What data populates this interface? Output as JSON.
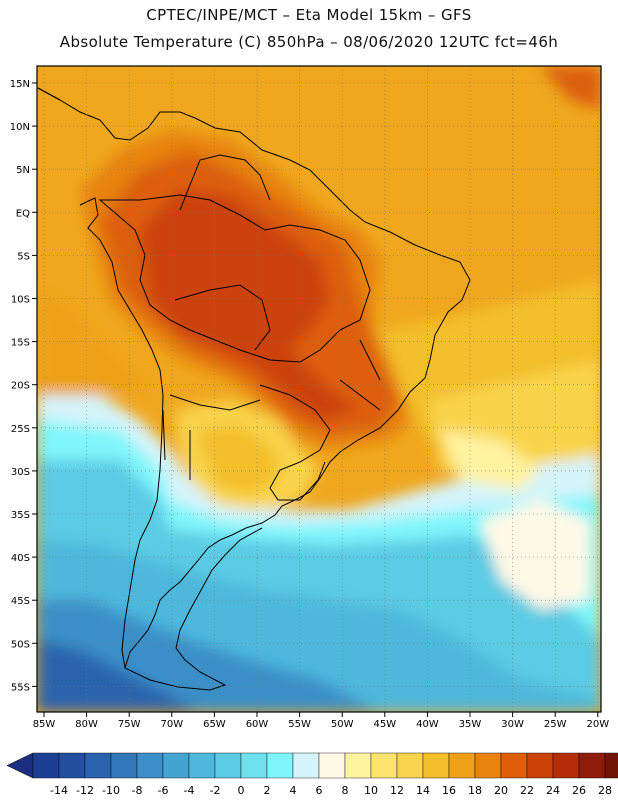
{
  "header": {
    "line1": "CPTEC/INPE/MCT –  Eta Model 15km – GFS",
    "line2": "Absolute Temperature (C) 850hPa – 08/06/2020 12UTC fct=46h"
  },
  "map": {
    "lat_labels": [
      "15N",
      "10N",
      "5N",
      "EQ",
      "5S",
      "10S",
      "15S",
      "20S",
      "25S",
      "30S",
      "35S",
      "40S",
      "45S",
      "50S",
      "55S"
    ],
    "lon_labels": [
      "85W",
      "80W",
      "75W",
      "70W",
      "65W",
      "60W",
      "55W",
      "50W",
      "45W",
      "40W",
      "35W",
      "30W",
      "25W",
      "20W"
    ]
  },
  "colorbar": {
    "labels": [
      "-14",
      "-12",
      "-10",
      "-8",
      "-6",
      "-4",
      "-2",
      "0",
      "2",
      "4",
      "6",
      "8",
      "10",
      "12",
      "14",
      "16",
      "18",
      "20",
      "22",
      "24",
      "26",
      "28"
    ],
    "colors": [
      "#1c3f94",
      "#234f9e",
      "#2a63ad",
      "#3378ba",
      "#3b8fc8",
      "#44a4d2",
      "#4eb8dc",
      "#5ccbe4",
      "#6ee0ee",
      "#7ff6fb",
      "#d5f4fb",
      "#fff9e6",
      "#fff3a0",
      "#fde46f",
      "#f9d44c",
      "#f3bf2a",
      "#eea115",
      "#e8830f",
      "#dd5f0b",
      "#cb4309",
      "#b32d08",
      "#8f1c0a",
      "#6f1406"
    ],
    "left_cap_color": "#1a2f82",
    "right_cap_color": "#6b0f22"
  }
}
